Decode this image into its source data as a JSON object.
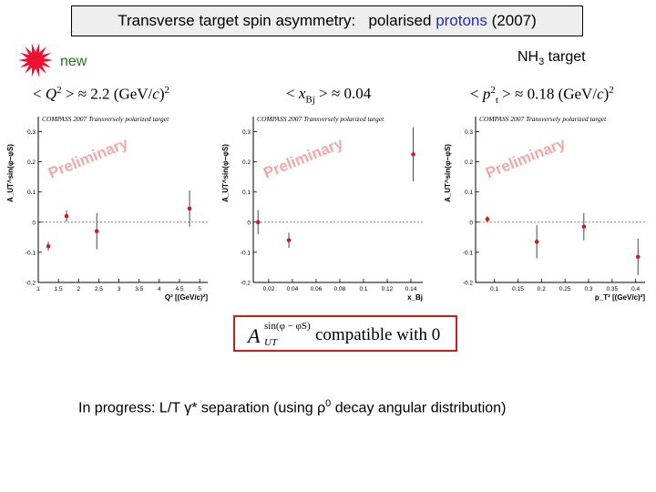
{
  "header": {
    "title_prefix": "Transverse target spin asymmetry:",
    "title_mid": "polarised",
    "title_accent": "protons",
    "title_suffix": "(2007)",
    "new_label": "new",
    "target_main": "NH",
    "target_sub": "3",
    "target_rest": " target"
  },
  "colors": {
    "accent": "#1f2fb0",
    "marker": "#d11a1a",
    "starburst": "#ee1133",
    "box": "#c81e1e",
    "watermark": "#f0a8a8"
  },
  "kinematics": [
    {
      "pre": "< ",
      "var": "Q",
      "sup": "2",
      "sub": "",
      "post": " > ≈ 2.2 (GeV/",
      "unit": "c",
      "post2": ")",
      "sup2": "2"
    },
    {
      "pre": "< ",
      "var": "x",
      "sup": "",
      "sub": "Bj",
      "post": " > ≈ 0.04",
      "unit": "",
      "post2": "",
      "sup2": ""
    },
    {
      "pre": "< ",
      "var": "p",
      "sup": "2",
      "sub": "t",
      "post": " > ≈ 0.18 (GeV/",
      "unit": "c",
      "post2": ")",
      "sup2": "2"
    }
  ],
  "result": {
    "symbol": "A",
    "superscript": "sin(φ − φS)",
    "subscript": "UT",
    "text": "compatible with  0"
  },
  "progress": {
    "pre": "In progress:  L/T γ* separation  (using ρ",
    "sup": "0",
    "post": " decay angular distribution)"
  },
  "chart_data": [
    {
      "type": "scatter",
      "title": "COMPASS 2007 Transversely polarized target",
      "watermark": "Preliminary",
      "xlabel": "Q² [(GeV/c)²]",
      "ylabel": "A_UT^sin(φ−φS)",
      "xlim": [
        1,
        5.2
      ],
      "ylim": [
        -0.2,
        0.35
      ],
      "xticks": [
        1,
        1.5,
        2,
        2.5,
        3,
        3.5,
        4,
        4.5,
        5
      ],
      "xtick_labels": [
        "1",
        "1.5",
        "2",
        "2.5",
        "3",
        "3.5",
        "4",
        "4.5",
        "5"
      ],
      "yticks": [
        -0.2,
        -0.1,
        0,
        0.1,
        0.2,
        0.3
      ],
      "ytick_labels": [
        "-0.2",
        "-0.1",
        "0",
        "0.1",
        "0.2",
        "0.3"
      ],
      "points": [
        {
          "x": 1.25,
          "y": -0.08,
          "err": 0.015
        },
        {
          "x": 1.7,
          "y": 0.02,
          "err": 0.018
        },
        {
          "x": 2.45,
          "y": -0.03,
          "err": 0.06
        },
        {
          "x": 4.75,
          "y": 0.045,
          "err": 0.06
        }
      ]
    },
    {
      "type": "scatter",
      "title": "COMPASS 2007 Transversely polarized target",
      "watermark": "Preliminary",
      "xlabel": "x_Bj",
      "ylabel": "A_UT^sin(φ−φS)",
      "xlim": [
        0.007,
        0.15
      ],
      "ylim": [
        -0.2,
        0.35
      ],
      "xticks": [
        0.02,
        0.04,
        0.06,
        0.08,
        0.1,
        0.12,
        0.14
      ],
      "xtick_labels": [
        "0.02",
        "0.04",
        "0.06",
        "0.08",
        "0.1",
        "0.12",
        "0.14"
      ],
      "yticks": [
        -0.2,
        -0.1,
        0,
        0.1,
        0.2,
        0.3
      ],
      "ytick_labels": [
        "-0.2",
        "-0.1",
        "0",
        "0.1",
        "0.2",
        "0.3"
      ],
      "points": [
        {
          "x": 0.011,
          "y": 0.0,
          "err": 0.04
        },
        {
          "x": 0.037,
          "y": -0.06,
          "err": 0.025
        },
        {
          "x": 0.142,
          "y": 0.225,
          "err": 0.09
        }
      ]
    },
    {
      "type": "scatter",
      "title": "COMPASS 2007 Transversely polarized target",
      "watermark": "Preliminary",
      "xlabel": "p_T² [(GeV/c)²]",
      "ylabel": "A_UT^sin(φ−φS)",
      "xlim": [
        0.06,
        0.42
      ],
      "ylim": [
        -0.2,
        0.35
      ],
      "xticks": [
        0.1,
        0.15,
        0.2,
        0.25,
        0.3,
        0.35,
        0.4
      ],
      "xtick_labels": [
        "0.1",
        "0.15",
        "0.2",
        "0.25",
        "0.3",
        "0.35",
        "0.4"
      ],
      "yticks": [
        -0.2,
        -0.1,
        0,
        0.1,
        0.2,
        0.3
      ],
      "ytick_labels": [
        "-0.2",
        "-0.1",
        "0",
        "0.1",
        "0.2",
        "0.3"
      ],
      "points": [
        {
          "x": 0.085,
          "y": 0.01,
          "err": 0.01
        },
        {
          "x": 0.19,
          "y": -0.065,
          "err": 0.055
        },
        {
          "x": 0.29,
          "y": -0.015,
          "err": 0.045
        },
        {
          "x": 0.405,
          "y": -0.115,
          "err": 0.06
        }
      ]
    }
  ]
}
